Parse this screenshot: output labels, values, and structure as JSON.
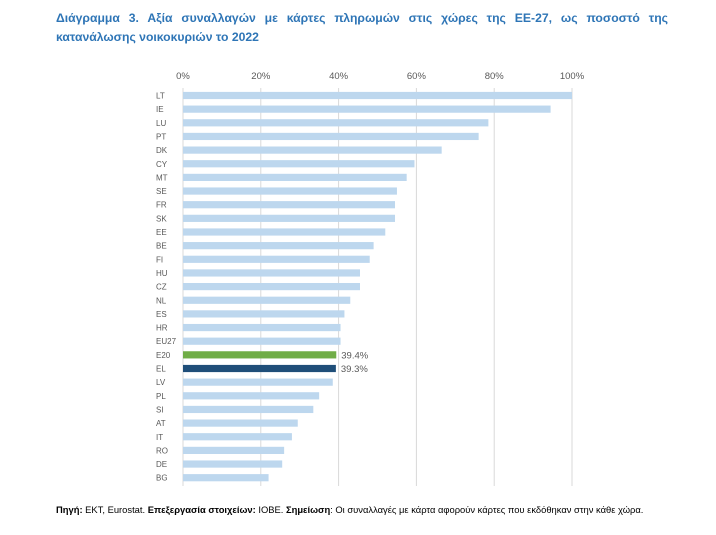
{
  "title": "Διάγραμμα 3. Αξία συναλλαγών με κάρτες πληρωμών στις χώρες της ΕΕ-27, ως ποσοστό της κατανάλωσης νοικοκυριών το 2022",
  "footnote": {
    "source_label": "Πηγή:",
    "source_text": " ΕΚΤ, Eurostat. ",
    "processing_label": "Επεξεργασία στοιχείων:",
    "processing_text": " ΙΟΒΕ. ",
    "note_label": "Σημείωση",
    "note_text": ": Οι συναλλαγές με κάρτα αφορούν κάρτες που εκδόθηκαν στην κάθε χώρα."
  },
  "colors": {
    "default_bar": "#bdd7ee",
    "E20": "#70ad47",
    "EL": "#1f4e79",
    "title": "#2e75b6",
    "grid": "#d9d9d9",
    "axis_text": "#595959"
  },
  "chart_data": {
    "type": "bar",
    "orientation": "horizontal",
    "x_axis_position": "top",
    "xlim": [
      0,
      100
    ],
    "ticks": [
      "0%",
      "20%",
      "40%",
      "60%",
      "80%",
      "100%"
    ],
    "tick_values": [
      0,
      20,
      40,
      60,
      80,
      100
    ],
    "grid": true,
    "categories": [
      "LT",
      "IE",
      "LU",
      "PT",
      "DK",
      "CY",
      "MT",
      "SE",
      "FR",
      "SK",
      "EE",
      "BE",
      "FI",
      "HU",
      "CZ",
      "NL",
      "ES",
      "HR",
      "EU27",
      "E20",
      "EL",
      "LV",
      "PL",
      "SI",
      "AT",
      "IT",
      "RO",
      "DE",
      "BG"
    ],
    "values": [
      100,
      94.5,
      78.5,
      76,
      66.5,
      59.5,
      57.5,
      55,
      54.5,
      54.5,
      52,
      49,
      48,
      45.5,
      45.5,
      43,
      41.5,
      40.5,
      40.5,
      39.4,
      39.3,
      38.5,
      35,
      33.5,
      29.5,
      28,
      26,
      25.5,
      22
    ],
    "data_labels": {
      "E20": "39.4%",
      "EL": "39.3%"
    }
  }
}
